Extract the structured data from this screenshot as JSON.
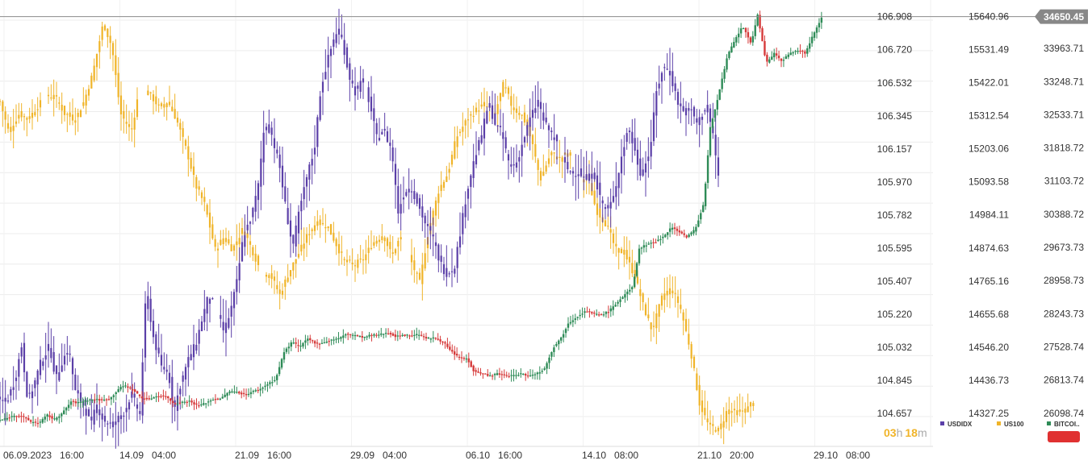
{
  "chart_data": {
    "type": "candlestick",
    "grid": true,
    "legend_position": "bottom-right",
    "current_price_label": "34650.45",
    "countdown": {
      "hours": "03",
      "h": "h",
      "minutes": "18",
      "m": "m"
    },
    "x_tick_labels": [
      "06.09.2023   16:00",
      "14.09   04:00",
      "21.09   16:00",
      "29.09   04:00",
      "06.10   16:00",
      "14.10   08:00",
      "21.10   20:00",
      "29.10   08:00"
    ],
    "y_axes": [
      {
        "name": "USDIDX",
        "range": [
          104.47,
          107.002
        ],
        "ticks": [
          "106.908",
          "106.720",
          "106.532",
          "106.345",
          "106.157",
          "105.970",
          "105.782",
          "105.595",
          "105.407",
          "105.220",
          "105.032",
          "104.845",
          "104.657"
        ]
      },
      {
        "name": "US100",
        "range": [
          14217.8,
          15695.7
        ],
        "ticks": [
          "15640.96",
          "15531.49",
          "15422.01",
          "15312.54",
          "15203.06",
          "15093.58",
          "14984.11",
          "14874.63",
          "14765.16",
          "14655.68",
          "14546.20",
          "14436.73",
          "14327.25"
        ]
      },
      {
        "name": "BITCOIN",
        "range": [
          25382.7,
          35007.9
        ],
        "ticks": [
          "33963.71",
          "33248.71",
          "32533.71",
          "31818.72",
          "31103.72",
          "30388.72",
          "29673.73",
          "28958.73",
          "28243.73",
          "27528.74",
          "26813.74",
          "26098.74"
        ]
      }
    ],
    "series": [
      {
        "name": "USDIDX",
        "color": "#5b3fa8",
        "points": [
          [
            0,
            104.73
          ],
          [
            3,
            104.72
          ],
          [
            7,
            104.85
          ],
          [
            10,
            105.04
          ],
          [
            13,
            104.72
          ],
          [
            16,
            104.83
          ],
          [
            19,
            104.95
          ],
          [
            23,
            105.04
          ],
          [
            26,
            104.85
          ],
          [
            29,
            104.96
          ],
          [
            32,
            105.02
          ],
          [
            35,
            104.78
          ],
          [
            39,
            104.7
          ],
          [
            42,
            104.6
          ],
          [
            45,
            104.7
          ],
          [
            48,
            104.62
          ],
          [
            52,
            104.59
          ],
          [
            55,
            104.63
          ],
          [
            58,
            104.67
          ],
          [
            61,
            104.77
          ],
          [
            65,
            104.65
          ],
          [
            68,
            105.38
          ],
          [
            71,
            105.1
          ],
          [
            75,
            104.92
          ],
          [
            78,
            104.9
          ],
          [
            81,
            104.68
          ],
          [
            84,
            104.83
          ],
          [
            88,
            104.98
          ],
          [
            91,
            105.05
          ],
          [
            94,
            105.2
          ],
          [
            97,
            105.33
          ],
          [
            100,
            105.26
          ],
          [
            104,
            105.12
          ],
          [
            107,
            105.23
          ],
          [
            110,
            105.4
          ],
          [
            113,
            105.66
          ],
          [
            117,
            105.78
          ],
          [
            120,
            105.95
          ],
          [
            123,
            106.31
          ],
          [
            126,
            106.25
          ],
          [
            130,
            106.05
          ],
          [
            133,
            105.8
          ],
          [
            136,
            105.6
          ],
          [
            139,
            105.8
          ],
          [
            143,
            106.02
          ],
          [
            146,
            106.15
          ],
          [
            149,
            106.5
          ],
          [
            152,
            106.65
          ],
          [
            156,
            106.82
          ],
          [
            159,
            106.78
          ],
          [
            162,
            106.58
          ],
          [
            165,
            106.48
          ],
          [
            169,
            106.55
          ],
          [
            172,
            106.4
          ],
          [
            175,
            106.22
          ],
          [
            178,
            106.27
          ],
          [
            182,
            106.15
          ],
          [
            185,
            105.8
          ],
          [
            188,
            105.92
          ],
          [
            191,
            105.94
          ],
          [
            194,
            105.85
          ],
          [
            198,
            105.72
          ],
          [
            201,
            105.66
          ],
          [
            204,
            105.53
          ],
          [
            207,
            105.45
          ],
          [
            211,
            105.48
          ],
          [
            214,
            105.7
          ],
          [
            217,
            105.92
          ],
          [
            220,
            106.08
          ],
          [
            224,
            106.25
          ],
          [
            227,
            106.42
          ],
          [
            230,
            106.3
          ],
          [
            233,
            106.25
          ],
          [
            237,
            106.05
          ],
          [
            240,
            106.08
          ],
          [
            243,
            106.2
          ],
          [
            246,
            106.32
          ],
          [
            250,
            106.43
          ],
          [
            253,
            106.3
          ],
          [
            256,
            106.25
          ],
          [
            259,
            106.18
          ],
          [
            263,
            106.05
          ],
          [
            266,
            106.02
          ],
          [
            269,
            106.03
          ],
          [
            272,
            105.98
          ],
          [
            276,
            106.02
          ],
          [
            279,
            105.87
          ],
          [
            282,
            105.8
          ],
          [
            285,
            105.88
          ],
          [
            289,
            106.13
          ],
          [
            292,
            106.28
          ],
          [
            295,
            106.14
          ],
          [
            298,
            106.0
          ],
          [
            302,
            106.15
          ],
          [
            305,
            106.48
          ],
          [
            308,
            106.62
          ],
          [
            311,
            106.6
          ],
          [
            315,
            106.42
          ],
          [
            318,
            106.36
          ],
          [
            321,
            106.38
          ],
          [
            324,
            106.3
          ],
          [
            328,
            106.4
          ],
          [
            331,
            106.26
          ],
          [
            334,
            105.98
          ]
        ]
      },
      {
        "name": "US100",
        "color": "#f0b429",
        "points": [
          [
            0,
            15360
          ],
          [
            4,
            15260
          ],
          [
            9,
            15320
          ],
          [
            13,
            15300
          ],
          [
            17,
            15340
          ],
          [
            22,
            15380
          ],
          [
            26,
            15370
          ],
          [
            30,
            15320
          ],
          [
            35,
            15300
          ],
          [
            39,
            15360
          ],
          [
            43,
            15450
          ],
          [
            48,
            15620
          ],
          [
            52,
            15540
          ],
          [
            56,
            15320
          ],
          [
            61,
            15260
          ],
          [
            65,
            15410
          ],
          [
            70,
            15380
          ],
          [
            74,
            15340
          ],
          [
            78,
            15360
          ],
          [
            82,
            15300
          ],
          [
            87,
            15190
          ],
          [
            91,
            15080
          ],
          [
            95,
            15020
          ],
          [
            100,
            14870
          ],
          [
            104,
            14910
          ],
          [
            108,
            14870
          ],
          [
            113,
            14940
          ],
          [
            117,
            14870
          ],
          [
            121,
            14800
          ],
          [
            126,
            14780
          ],
          [
            130,
            14720
          ],
          [
            134,
            14790
          ],
          [
            139,
            14860
          ],
          [
            143,
            14920
          ],
          [
            147,
            14960
          ],
          [
            152,
            14950
          ],
          [
            156,
            14890
          ],
          [
            160,
            14830
          ],
          [
            165,
            14820
          ],
          [
            169,
            14840
          ],
          [
            173,
            14890
          ],
          [
            178,
            14920
          ],
          [
            182,
            14850
          ],
          [
            186,
            14910
          ],
          [
            191,
            14830
          ],
          [
            195,
            14760
          ],
          [
            199,
            14930
          ],
          [
            204,
            15070
          ],
          [
            208,
            15120
          ],
          [
            212,
            15240
          ],
          [
            217,
            15300
          ],
          [
            221,
            15330
          ],
          [
            225,
            15350
          ],
          [
            230,
            15320
          ],
          [
            234,
            15420
          ],
          [
            238,
            15340
          ],
          [
            243,
            15310
          ],
          [
            247,
            15230
          ],
          [
            251,
            15100
          ],
          [
            256,
            15190
          ],
          [
            260,
            15170
          ],
          [
            264,
            15190
          ],
          [
            269,
            15100
          ],
          [
            273,
            15110
          ],
          [
            277,
            15000
          ],
          [
            282,
            14950
          ],
          [
            286,
            14870
          ],
          [
            290,
            14860
          ],
          [
            295,
            14780
          ],
          [
            299,
            14680
          ],
          [
            303,
            14600
          ],
          [
            308,
            14720
          ],
          [
            312,
            14740
          ],
          [
            316,
            14680
          ],
          [
            321,
            14530
          ],
          [
            325,
            14360
          ],
          [
            329,
            14290
          ],
          [
            334,
            14270
          ],
          [
            338,
            14340
          ],
          [
            342,
            14330
          ],
          [
            347,
            14340
          ],
          [
            351,
            14380
          ]
        ]
      },
      {
        "name": "BITCOIN",
        "color": "#2e8b57",
        "points": [
          [
            0,
            25950
          ],
          [
            4,
            26000
          ],
          [
            7,
            26060
          ],
          [
            11,
            26020
          ],
          [
            14,
            25920
          ],
          [
            18,
            25880
          ],
          [
            22,
            26060
          ],
          [
            25,
            25960
          ],
          [
            29,
            26100
          ],
          [
            33,
            26350
          ],
          [
            36,
            26320
          ],
          [
            40,
            26380
          ],
          [
            44,
            26400
          ],
          [
            47,
            26380
          ],
          [
            51,
            26400
          ],
          [
            55,
            26620
          ],
          [
            58,
            26700
          ],
          [
            62,
            26590
          ],
          [
            66,
            26420
          ],
          [
            69,
            26400
          ],
          [
            73,
            26470
          ],
          [
            77,
            26460
          ],
          [
            81,
            26300
          ],
          [
            84,
            26330
          ],
          [
            88,
            26360
          ],
          [
            92,
            26260
          ],
          [
            95,
            26310
          ],
          [
            99,
            26400
          ],
          [
            103,
            26420
          ],
          [
            106,
            26560
          ],
          [
            110,
            26560
          ],
          [
            114,
            26490
          ],
          [
            117,
            26560
          ],
          [
            121,
            26620
          ],
          [
            125,
            26750
          ],
          [
            128,
            26820
          ],
          [
            132,
            27420
          ],
          [
            136,
            27650
          ],
          [
            139,
            27520
          ],
          [
            143,
            27700
          ],
          [
            147,
            27600
          ],
          [
            150,
            27620
          ],
          [
            154,
            27680
          ],
          [
            158,
            27720
          ],
          [
            161,
            27810
          ],
          [
            165,
            27780
          ],
          [
            169,
            27730
          ],
          [
            172,
            27780
          ],
          [
            176,
            27790
          ],
          [
            180,
            27840
          ],
          [
            184,
            27750
          ],
          [
            187,
            27780
          ],
          [
            191,
            27780
          ],
          [
            195,
            27800
          ],
          [
            198,
            27710
          ],
          [
            202,
            27720
          ],
          [
            206,
            27630
          ],
          [
            209,
            27460
          ],
          [
            213,
            27300
          ],
          [
            217,
            27270
          ],
          [
            220,
            27020
          ],
          [
            224,
            26950
          ],
          [
            228,
            26900
          ],
          [
            231,
            26950
          ],
          [
            235,
            26910
          ],
          [
            239,
            26910
          ],
          [
            242,
            26950
          ],
          [
            246,
            26900
          ],
          [
            250,
            26970
          ],
          [
            253,
            27060
          ],
          [
            257,
            27510
          ],
          [
            261,
            27740
          ],
          [
            264,
            28040
          ],
          [
            268,
            28180
          ],
          [
            272,
            28300
          ],
          [
            275,
            28250
          ],
          [
            279,
            28210
          ],
          [
            283,
            28300
          ],
          [
            286,
            28450
          ],
          [
            290,
            28640
          ],
          [
            294,
            28820
          ],
          [
            297,
            29650
          ],
          [
            301,
            29750
          ],
          [
            305,
            29800
          ],
          [
            308,
            29900
          ],
          [
            312,
            30110
          ],
          [
            316,
            30000
          ],
          [
            319,
            29900
          ],
          [
            323,
            30060
          ],
          [
            327,
            30620
          ],
          [
            330,
            32250
          ],
          [
            334,
            33000
          ],
          [
            338,
            33800
          ],
          [
            341,
            34100
          ],
          [
            345,
            34450
          ],
          [
            349,
            34050
          ],
          [
            352,
            34700
          ],
          [
            356,
            33640
          ],
          [
            360,
            33870
          ],
          [
            363,
            33690
          ],
          [
            367,
            33850
          ],
          [
            371,
            33920
          ],
          [
            374,
            33860
          ],
          [
            378,
            34270
          ],
          [
            382,
            34650
          ]
        ]
      }
    ]
  }
}
